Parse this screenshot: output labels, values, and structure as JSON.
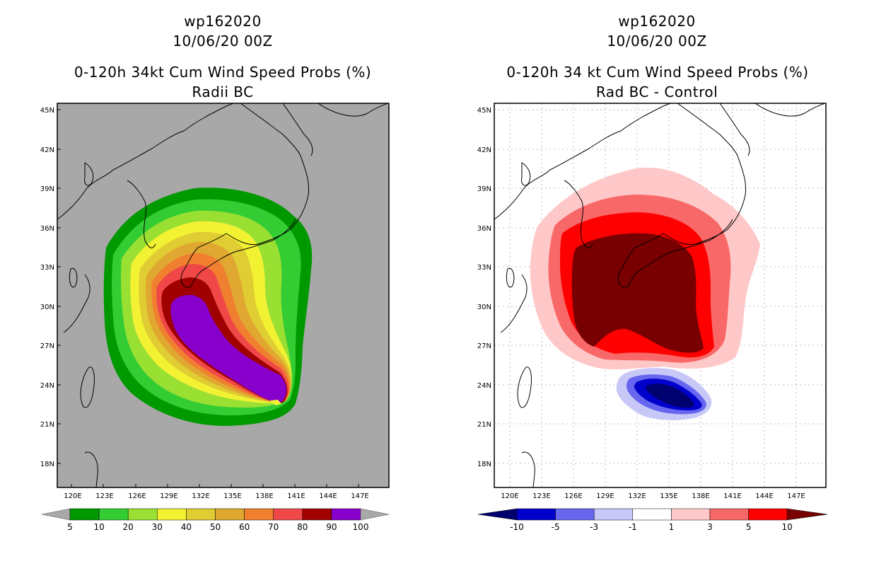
{
  "left": {
    "storm_id": "wp162020",
    "datetime": "10/06/20 00Z",
    "product": "0-120h 34kt Cum Wind Speed Probs (%)",
    "subtitle": "Radii BC",
    "lat_labels": [
      "45N",
      "42N",
      "39N",
      "36N",
      "33N",
      "30N",
      "27N",
      "24N",
      "21N",
      "18N"
    ],
    "lon_labels": [
      "120E",
      "123E",
      "126E",
      "129E",
      "132E",
      "135E",
      "138E",
      "141E",
      "144E",
      "147E"
    ],
    "colorbar": {
      "labels": [
        "5",
        "10",
        "20",
        "30",
        "40",
        "50",
        "60",
        "70",
        "80",
        "90",
        "100"
      ],
      "colors": [
        "#009900",
        "#33cc33",
        "#99e033",
        "#f2f233",
        "#e0cc33",
        "#e0a830",
        "#f08030",
        "#f04848",
        "#a00000",
        "#8800cc"
      ]
    }
  },
  "right": {
    "storm_id": "wp162020",
    "datetime": "10/06/20 00Z",
    "product": "0-120h 34 kt Cum Wind Speed Probs (%)",
    "subtitle": "Rad BC - Control",
    "lat_labels": [
      "45N",
      "42N",
      "39N",
      "36N",
      "33N",
      "30N",
      "27N",
      "24N",
      "21N",
      "18N"
    ],
    "lon_labels": [
      "120E",
      "123E",
      "126E",
      "129E",
      "132E",
      "135E",
      "138E",
      "141E",
      "144E",
      "147E"
    ],
    "colorbar": {
      "labels": [
        "-10",
        "-5",
        "-3",
        "-1",
        "1",
        "3",
        "5",
        "10"
      ],
      "colors": [
        "#0000cc",
        "#6666ee",
        "#c8c8f8",
        "#ffffff",
        "#ffc8c8",
        "#f86868",
        "#ff0000",
        "#780000"
      ],
      "end_colors": [
        "#00006e",
        "#780000"
      ]
    }
  }
}
